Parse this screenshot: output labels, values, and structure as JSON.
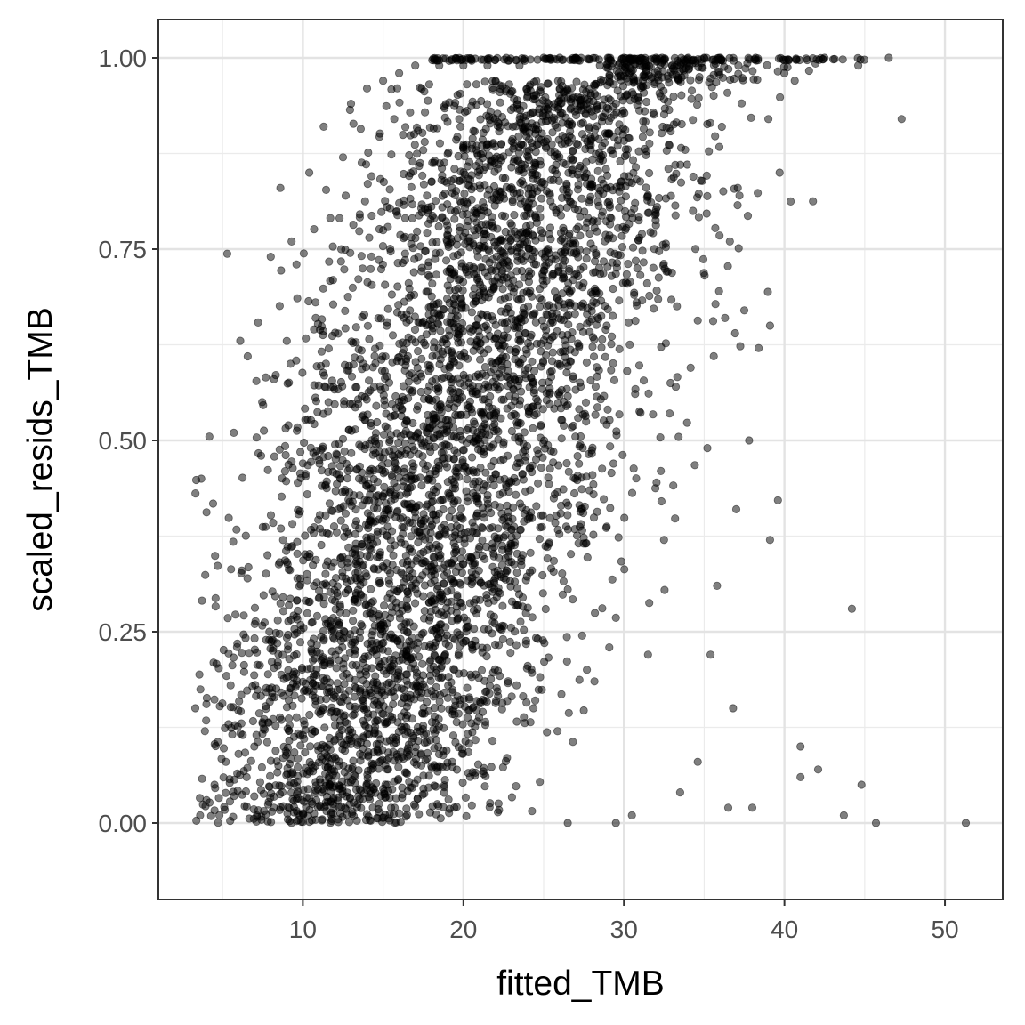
{
  "chart_data": {
    "type": "scatter",
    "title": "",
    "xlabel": "fitted_TMB",
    "ylabel": "scaled_resids_TMB",
    "xlim": [
      1.0,
      53.6
    ],
    "ylim": [
      -0.1,
      1.05
    ],
    "x_ticks": [
      10,
      20,
      30,
      40,
      50
    ],
    "x_tick_labels": [
      "10",
      "20",
      "30",
      "40",
      "50"
    ],
    "y_ticks": [
      0,
      0.25,
      0.5,
      0.75,
      1
    ],
    "y_tick_labels": [
      "0.00",
      "0.25",
      "0.50",
      "0.75",
      "1.00"
    ],
    "grid": true,
    "theme": "bw",
    "point_color": "#000000",
    "point_alpha": 0.5,
    "approx_point_count": 5000,
    "series": [
      {
        "values": [
          [
            3.3,
            0.15
          ],
          [
            3.6,
            0.01
          ],
          [
            3.9,
            0.12
          ],
          [
            4.0,
            0.03
          ],
          [
            4.5,
            0.05
          ],
          [
            4.8,
            0.01
          ],
          [
            5.2,
            0.08
          ],
          [
            5.5,
            0.18
          ],
          [
            5.7,
            0.51
          ],
          [
            5.9,
            0.23
          ],
          [
            6.2,
            0.33
          ],
          [
            6.5,
            0.06
          ],
          [
            7.0,
            0.26
          ],
          [
            7.4,
            0.48
          ],
          [
            7.8,
            0.35
          ],
          [
            8.0,
            0.74
          ],
          [
            8.2,
            0.58
          ],
          [
            8.6,
            0.83
          ],
          [
            9.0,
            0.63
          ],
          [
            9.3,
            0.76
          ],
          [
            9.6,
            0.73
          ],
          [
            10.0,
            0.47
          ],
          [
            10.4,
            0.85
          ],
          [
            10.8,
            0.66
          ],
          [
            11.3,
            0.91
          ],
          [
            11.6,
            0.55
          ],
          [
            12.0,
            0.29
          ],
          [
            12.5,
            0.87
          ],
          [
            13.0,
            0.94
          ],
          [
            13.5,
            0.45
          ],
          [
            14.0,
            0.96
          ],
          [
            14.5,
            0.62
          ],
          [
            15.0,
            0.97
          ],
          [
            15.5,
            0.02
          ],
          [
            16.0,
            0.98
          ],
          [
            17.0,
            0.99
          ],
          [
            18.5,
            0.99
          ],
          [
            20.0,
            0.99
          ],
          [
            21.5,
            0.99
          ],
          [
            22.0,
            0.97
          ],
          [
            23.5,
            0.99
          ],
          [
            24.0,
            0.95
          ],
          [
            25.0,
            1.0
          ],
          [
            26.0,
            1.0
          ],
          [
            26.5,
            0.0
          ],
          [
            27.0,
            1.0
          ],
          [
            28.0,
            0.93
          ],
          [
            28.5,
            0.99
          ],
          [
            29.0,
            1.0
          ],
          [
            29.5,
            0.0
          ],
          [
            30.0,
            1.0
          ],
          [
            30.5,
            0.01
          ],
          [
            31.0,
            0.99
          ],
          [
            31.5,
            0.22
          ],
          [
            32.0,
            1.0
          ],
          [
            32.3,
            0.46
          ],
          [
            32.5,
            0.37
          ],
          [
            33.0,
            0.99
          ],
          [
            33.2,
            0.86
          ],
          [
            33.5,
            0.04
          ],
          [
            34.0,
            1.0
          ],
          [
            34.3,
            0.8
          ],
          [
            34.6,
            0.08
          ],
          [
            35.0,
            1.0
          ],
          [
            35.2,
            0.49
          ],
          [
            35.4,
            0.22
          ],
          [
            35.6,
            0.61
          ],
          [
            35.8,
            0.31
          ],
          [
            36.0,
            1.0
          ],
          [
            36.3,
            0.66
          ],
          [
            36.5,
            0.02
          ],
          [
            36.6,
            0.76
          ],
          [
            36.8,
            0.15
          ],
          [
            37.0,
            0.41
          ],
          [
            37.2,
            0.82
          ],
          [
            37.5,
            0.67
          ],
          [
            37.8,
            0.5
          ],
          [
            38.0,
            0.02
          ],
          [
            38.2,
            1.0
          ],
          [
            39.0,
            0.92
          ],
          [
            39.1,
            0.65
          ],
          [
            39.1,
            0.37
          ],
          [
            39.7,
            0.85
          ],
          [
            40.0,
            0.98
          ],
          [
            41.0,
            0.1
          ],
          [
            41.0,
            0.06
          ],
          [
            42.1,
            0.07
          ],
          [
            42.5,
            1.0
          ],
          [
            43.7,
            0.01
          ],
          [
            44.2,
            0.28
          ],
          [
            44.6,
            0.99
          ],
          [
            44.8,
            0.05
          ],
          [
            45.7,
            0.0
          ],
          [
            46.5,
            1.0
          ],
          [
            47.3,
            0.92
          ],
          [
            51.3,
            0.0
          ]
        ]
      }
    ]
  }
}
